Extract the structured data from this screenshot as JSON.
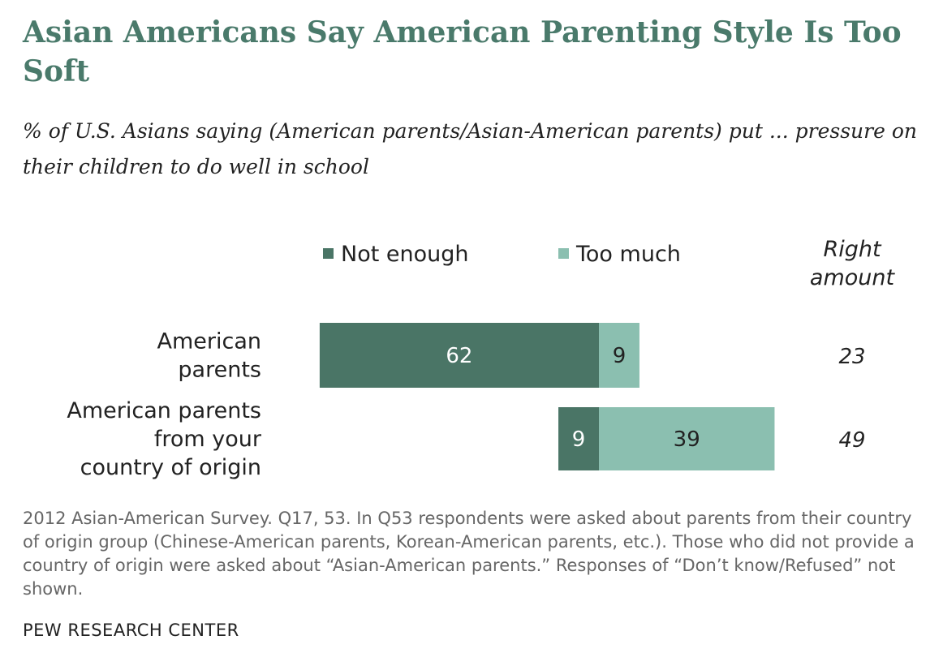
{
  "title": "Asian Americans Say American Parenting Style Is Too Soft",
  "subtitle": "% of U.S. Asians saying (American parents/Asian-American parents) put ... pressure on their children to do well in school",
  "note": "2012 Asian-American Survey. Q17, 53. In Q53 respondents were asked about parents from their country of origin group (Chinese-American parents, Korean-American parents, etc.). Those who did not provide a country of origin were asked about “Asian-American parents.” Responses of “Don’t know/Refused” not shown.",
  "source": "PEW RESEARCH CENTER",
  "colors": {
    "not_enough": "#4a7566",
    "too_much": "#8bbfb0",
    "title": "#4a7a6b"
  },
  "chart_data": {
    "type": "bar",
    "orientation": "horizontal",
    "stacked": true,
    "categories": [
      [
        "American",
        "parents"
      ],
      [
        "American parents",
        "from your",
        "country of origin"
      ]
    ],
    "series": [
      {
        "name": "Not enough",
        "values": [
          62,
          9
        ],
        "color": "#4a7566"
      },
      {
        "name": "Too much",
        "values": [
          9,
          39
        ],
        "color": "#8bbfb0"
      }
    ],
    "right_column": {
      "header": [
        "Right",
        "amount"
      ],
      "values": [
        23,
        49
      ]
    },
    "legend_position": "top",
    "grid": false
  }
}
